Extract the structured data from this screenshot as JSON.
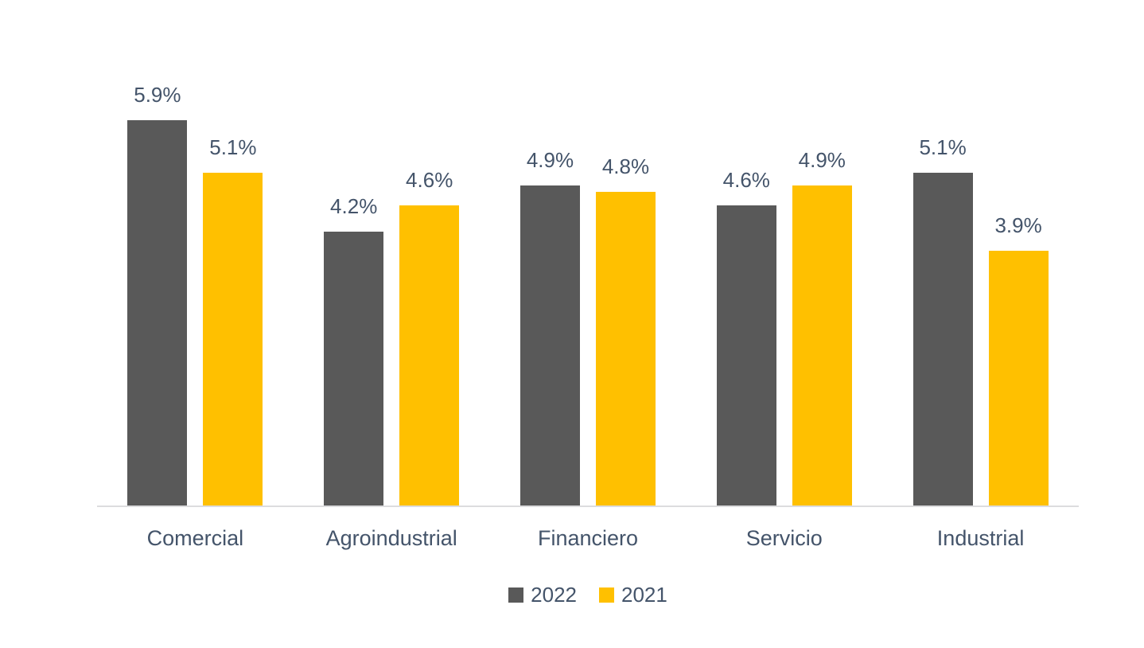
{
  "chart_data": {
    "type": "bar",
    "title": "",
    "categories": [
      "Comercial",
      "Agroindustrial",
      "Financiero",
      "Servicio",
      "Industrial"
    ],
    "series": [
      {
        "name": "2022",
        "color": "#595959",
        "values": [
          5.9,
          4.2,
          4.9,
          4.6,
          5.1
        ]
      },
      {
        "name": "2021",
        "color": "#FFC000",
        "values": [
          5.1,
          4.6,
          4.8,
          4.9,
          3.9
        ]
      }
    ],
    "data_labels": [
      [
        "5.9%",
        "4.2%",
        "4.9%",
        "4.6%",
        "5.1%"
      ],
      [
        "5.1%",
        "4.6%",
        "4.8%",
        "4.9%",
        "3.9%"
      ]
    ],
    "value_suffix": "%",
    "xlabel": "",
    "ylabel": "",
    "ylim": [
      0,
      6.5
    ],
    "grid": false,
    "legend_position": "bottom",
    "axis_line_color": "#dcdcde",
    "label_text_color": "#44546a",
    "pixels_per_percent": 82
  }
}
